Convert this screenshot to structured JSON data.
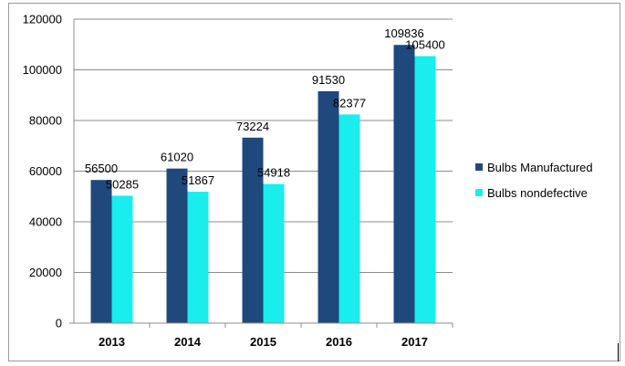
{
  "chart_data": {
    "type": "bar",
    "categories": [
      "2013",
      "2014",
      "2015",
      "2016",
      "2017"
    ],
    "series": [
      {
        "name": "Bulbs Manufactured",
        "color": "#1f497d",
        "values": [
          56500,
          61020,
          73224,
          91530,
          109836
        ]
      },
      {
        "name": "Bulbs nondefective",
        "color": "#19eded",
        "values": [
          50285,
          51867,
          54918,
          82377,
          105400
        ]
      }
    ],
    "ylim": [
      0,
      120000
    ],
    "yticks": [
      0,
      20000,
      40000,
      60000,
      80000,
      100000,
      120000
    ],
    "title": "",
    "xlabel": "",
    "ylabel": "",
    "grid": true,
    "legend_position": "right"
  }
}
